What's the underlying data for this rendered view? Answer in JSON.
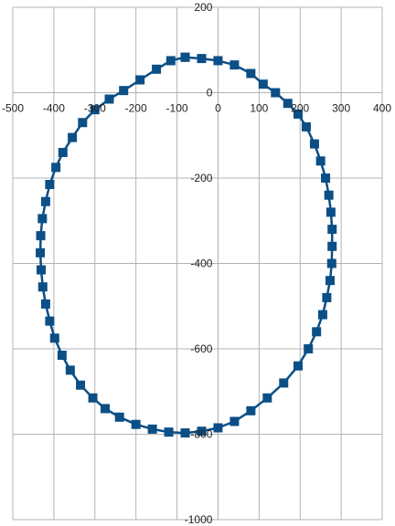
{
  "chart_data": {
    "type": "scatter",
    "title": "",
    "xlabel": "",
    "ylabel": "",
    "xlim": [
      -500,
      400
    ],
    "ylim": [
      -1000,
      200
    ],
    "x_ticks": [
      -500,
      -400,
      -300,
      -200,
      -100,
      0,
      100,
      200,
      300,
      400
    ],
    "y_ticks": [
      200,
      0,
      -200,
      -400,
      -600,
      -800,
      -1000
    ],
    "x_tick_labels": [
      "-500",
      "-400",
      "-300",
      "-200",
      "-100",
      "0",
      "100",
      "200",
      "300",
      "400"
    ],
    "y_tick_labels": [
      "200",
      "0",
      "-200",
      "-400",
      "-600",
      "-800",
      "-1000"
    ],
    "grid": true,
    "legend": "none",
    "series_color": "#0b4f86",
    "series": [
      {
        "marker": "square",
        "line": true,
        "points": [
          [
            -80,
            83
          ],
          [
            -40,
            80
          ],
          [
            0,
            75
          ],
          [
            40,
            65
          ],
          [
            80,
            45
          ],
          [
            110,
            20
          ],
          [
            140,
            0
          ],
          [
            170,
            -25
          ],
          [
            195,
            -50
          ],
          [
            215,
            -80
          ],
          [
            235,
            -120
          ],
          [
            250,
            -160
          ],
          [
            262,
            -200
          ],
          [
            270,
            -240
          ],
          [
            275,
            -280
          ],
          [
            278,
            -320
          ],
          [
            278,
            -360
          ],
          [
            277,
            -400
          ],
          [
            273,
            -440
          ],
          [
            265,
            -480
          ],
          [
            255,
            -520
          ],
          [
            240,
            -560
          ],
          [
            220,
            -600
          ],
          [
            195,
            -640
          ],
          [
            160,
            -680
          ],
          [
            120,
            -715
          ],
          [
            80,
            -745
          ],
          [
            40,
            -770
          ],
          [
            0,
            -785
          ],
          [
            -40,
            -793
          ],
          [
            -80,
            -797
          ],
          [
            -120,
            -795
          ],
          [
            -160,
            -788
          ],
          [
            -200,
            -777
          ],
          [
            -240,
            -760
          ],
          [
            -275,
            -740
          ],
          [
            -305,
            -715
          ],
          [
            -335,
            -685
          ],
          [
            -360,
            -650
          ],
          [
            -380,
            -615
          ],
          [
            -398,
            -575
          ],
          [
            -410,
            -535
          ],
          [
            -420,
            -495
          ],
          [
            -427,
            -455
          ],
          [
            -431,
            -415
          ],
          [
            -433,
            -375
          ],
          [
            -432,
            -335
          ],
          [
            -428,
            -295
          ],
          [
            -420,
            -255
          ],
          [
            -410,
            -215
          ],
          [
            -395,
            -175
          ],
          [
            -378,
            -140
          ],
          [
            -355,
            -105
          ],
          [
            -330,
            -70
          ],
          [
            -300,
            -40
          ],
          [
            -265,
            -15
          ],
          [
            -230,
            5
          ],
          [
            -190,
            30
          ],
          [
            -150,
            55
          ],
          [
            -115,
            75
          ],
          [
            -80,
            83
          ]
        ]
      }
    ]
  }
}
